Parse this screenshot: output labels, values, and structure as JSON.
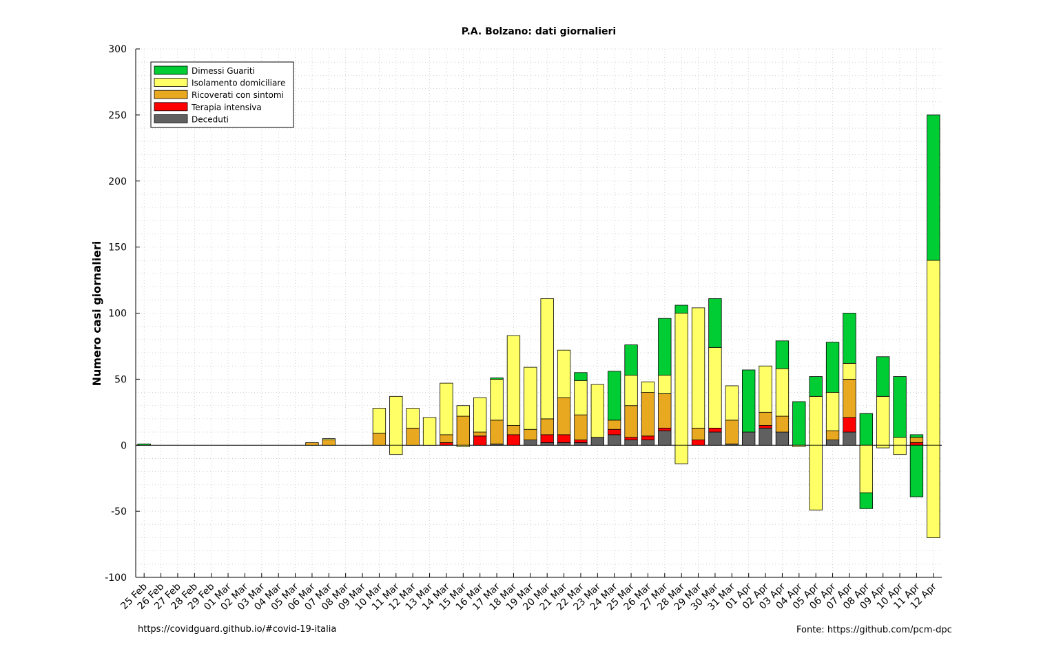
{
  "chart_data": {
    "type": "bar",
    "stacked": true,
    "title": "P.A. Bolzano: dati giornalieri",
    "xlabel": "",
    "ylabel": "Numero casi giornalieri",
    "ylim": [
      -100,
      300
    ],
    "yticks": [
      -100,
      -50,
      0,
      50,
      100,
      150,
      200,
      250,
      300
    ],
    "grid": true,
    "legend_position": "top-left",
    "categories": [
      "25 Feb",
      "26 Feb",
      "27 Feb",
      "28 Feb",
      "29 Feb",
      "01 Mar",
      "02 Mar",
      "03 Mar",
      "04 Mar",
      "05 Mar",
      "06 Mar",
      "07 Mar",
      "08 Mar",
      "09 Mar",
      "10 Mar",
      "11 Mar",
      "12 Mar",
      "13 Mar",
      "14 Mar",
      "15 Mar",
      "16 Mar",
      "17 Mar",
      "18 Mar",
      "19 Mar",
      "20 Mar",
      "21 Mar",
      "22 Mar",
      "23 Mar",
      "24 Mar",
      "25 Mar",
      "26 Mar",
      "27 Mar",
      "28 Mar",
      "29 Mar",
      "30 Mar",
      "31 Mar",
      "01 Apr",
      "02 Apr",
      "03 Apr",
      "04 Apr",
      "05 Apr",
      "06 Apr",
      "07 Apr",
      "08 Apr",
      "09 Apr",
      "10 Apr",
      "11 Apr",
      "12 Apr"
    ],
    "series": [
      {
        "name": "Deceduti",
        "color": "#606060",
        "values": [
          0,
          0,
          0,
          0,
          0,
          0,
          0,
          0,
          0,
          0,
          0,
          0,
          0,
          0,
          0,
          0,
          0,
          0,
          0,
          0,
          0,
          1,
          0,
          4,
          2,
          2,
          2,
          6,
          8,
          4,
          4,
          11,
          0,
          0,
          10,
          1,
          10,
          13,
          10,
          0,
          0,
          4,
          10,
          0,
          0,
          0,
          0,
          0
        ]
      },
      {
        "name": "Terapia intensiva",
        "color": "#ff0000",
        "values": [
          0,
          0,
          0,
          0,
          0,
          0,
          0,
          0,
          0,
          0,
          0,
          0,
          0,
          0,
          0,
          0,
          0,
          0,
          2,
          0,
          7,
          0,
          8,
          0,
          6,
          6,
          2,
          0,
          4,
          2,
          3,
          2,
          0,
          4,
          3,
          0,
          0,
          2,
          0,
          0,
          0,
          0,
          11,
          0,
          0,
          0,
          2,
          0
        ]
      },
      {
        "name": "Ricoverati con sintomi",
        "color": "#e8a820",
        "values": [
          0,
          0,
          0,
          0,
          0,
          0,
          0,
          0,
          0,
          0,
          2,
          4,
          0,
          0,
          9,
          0,
          13,
          0,
          6,
          22,
          3,
          18,
          7,
          8,
          12,
          28,
          19,
          0,
          7,
          24,
          33,
          26,
          0,
          9,
          0,
          18,
          0,
          10,
          12,
          0,
          0,
          7,
          29,
          0,
          0,
          0,
          4,
          0
        ]
      },
      {
        "name": "Isolamento domiciliare",
        "color": "#ffff66",
        "values": [
          0,
          0,
          0,
          0,
          0,
          0,
          0,
          0,
          0,
          0,
          0,
          1,
          0,
          0,
          19,
          37,
          15,
          21,
          39,
          8,
          26,
          31,
          68,
          47,
          91,
          36,
          26,
          40,
          0,
          23,
          8,
          14,
          100,
          91,
          61,
          26,
          0,
          35,
          36,
          0,
          37,
          29,
          12,
          -12,
          37,
          6,
          0,
          140
        ]
      },
      {
        "name": "Dimessi Guariti",
        "color": "#00cc33",
        "values": [
          1,
          0,
          0,
          0,
          0,
          0,
          0,
          0,
          0,
          0,
          0,
          0,
          0,
          0,
          0,
          0,
          0,
          0,
          0,
          0,
          0,
          1,
          0,
          0,
          0,
          0,
          6,
          0,
          37,
          23,
          0,
          43,
          6,
          0,
          37,
          0,
          47,
          0,
          21,
          33,
          15,
          38,
          38,
          24,
          30,
          46,
          2,
          110
        ]
      }
    ],
    "negative": {
      "Isolamento domiciliare": [
        0,
        0,
        0,
        0,
        0,
        0,
        0,
        0,
        0,
        0,
        0,
        0,
        0,
        0,
        0,
        -7,
        0,
        0,
        0,
        -1,
        0,
        0,
        0,
        0,
        0,
        0,
        0,
        0,
        0,
        0,
        0,
        0,
        -14,
        0,
        0,
        0,
        0,
        0,
        0,
        -1,
        -49,
        0,
        0,
        -36,
        -2,
        -7,
        0,
        -70
      ],
      "Dimessi Guariti": [
        0,
        0,
        0,
        0,
        0,
        0,
        0,
        0,
        0,
        0,
        0,
        0,
        0,
        0,
        0,
        0,
        0,
        0,
        0,
        0,
        0,
        0,
        0,
        0,
        0,
        0,
        0,
        0,
        0,
        0,
        0,
        0,
        0,
        0,
        0,
        0,
        0,
        0,
        0,
        0,
        0,
        0,
        0,
        -12,
        0,
        0,
        -39,
        0
      ]
    },
    "footer_left": "https://covidguard.github.io/#covid-19-italia",
    "footer_right": "Fonte: https://github.com/pcm-dpc"
  }
}
